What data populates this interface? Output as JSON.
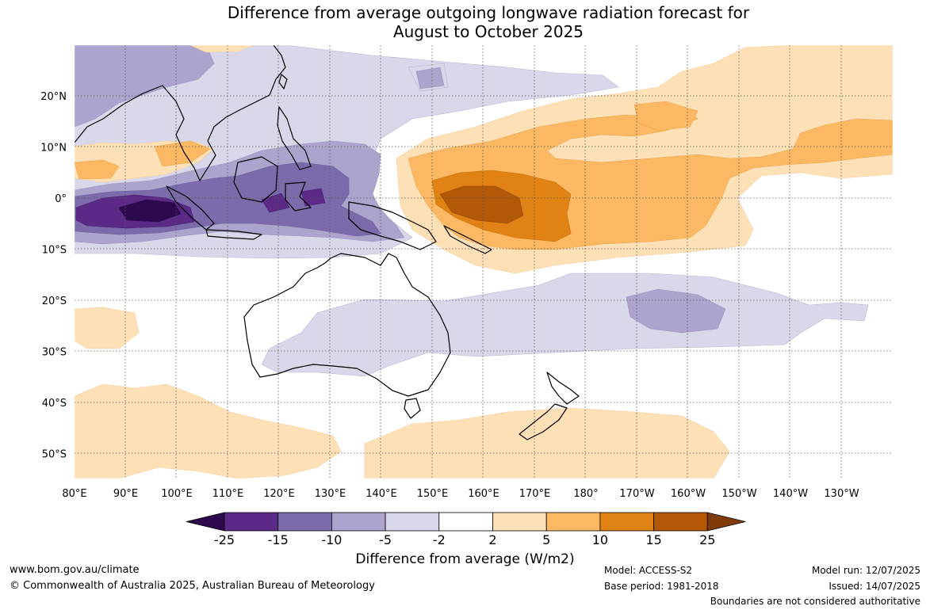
{
  "title": {
    "line1": "Difference from average outgoing longwave radiation forecast for",
    "line2": "August to October 2025"
  },
  "map": {
    "lon_labels": [
      "80°E",
      "90°E",
      "100°E",
      "110°E",
      "120°E",
      "130°E",
      "140°E",
      "150°E",
      "160°E",
      "170°E",
      "180°",
      "170°W",
      "160°W",
      "150°W",
      "140°W",
      "130°W"
    ],
    "lat_labels": [
      "20°N",
      "10°N",
      "0°",
      "10°S",
      "20°S",
      "30°S",
      "40°S",
      "50°S"
    ]
  },
  "colorbar": {
    "ticks": [
      "-25",
      "-15",
      "-10",
      "-5",
      "-2",
      "2",
      "5",
      "10",
      "15",
      "25"
    ],
    "colors": [
      "#2d0a4e",
      "#5a2a86",
      "#7b6bab",
      "#aca4cd",
      "#d9d8ea",
      "#ffffff",
      "#fee0b6",
      "#fdb863",
      "#e08214",
      "#b35806",
      "#7f3b08"
    ],
    "label": "Difference from average (W/m2)"
  },
  "footer": {
    "url": "www.bom.gov.au/climate",
    "copyright": "© Commonwealth of Australia 2025, Australian Bureau of Meteorology",
    "model": "Model: ACCESS-S2",
    "base_period": "Base period: 1981-2018",
    "model_run": "Model run: 12/07/2025",
    "issued": "Issued: 14/07/2025",
    "disclaimer": "Boundaries are not considered authoritative"
  }
}
